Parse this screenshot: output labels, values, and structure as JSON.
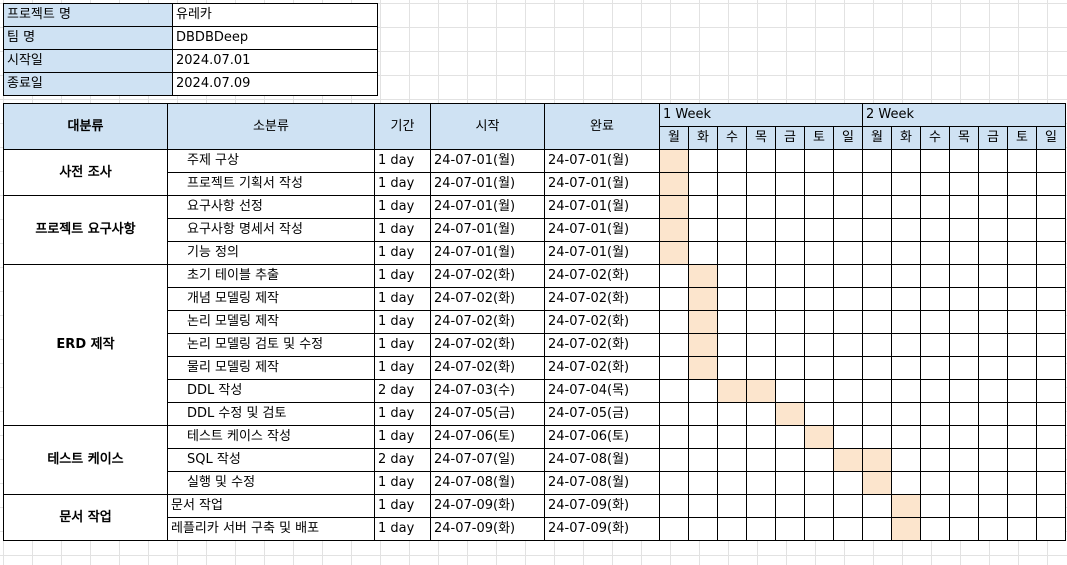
{
  "project_info": {
    "rows": [
      {
        "label": "프로젝트 명",
        "value": "유레카"
      },
      {
        "label": "팀 명",
        "value": "DBDBDeep"
      },
      {
        "label": "시작일",
        "value": "2024.07.01"
      },
      {
        "label": "종료일",
        "value": "2024.07.09"
      }
    ]
  },
  "schedule": {
    "headers": {
      "category": "대분류",
      "subcategory": "소분류",
      "duration": "기간",
      "start": "시작",
      "end": "완료"
    },
    "weeks": [
      "1 Week",
      "2 Week"
    ],
    "days": [
      "월",
      "화",
      "수",
      "목",
      "금",
      "토",
      "일",
      "월",
      "화",
      "수",
      "목",
      "금",
      "토",
      "일"
    ],
    "highlight_color": "#fce5cd",
    "header_color": "#cfe2f3",
    "groups": [
      {
        "category": "사전 조사",
        "tasks": [
          {
            "name": "주제 구상",
            "duration": "1 day",
            "start": "24-07-01(월)",
            "end": "24-07-01(월)",
            "active_days": [
              0
            ]
          },
          {
            "name": "프로젝트 기획서 작성",
            "duration": "1 day",
            "start": "24-07-01(월)",
            "end": "24-07-01(월)",
            "active_days": [
              0
            ]
          }
        ]
      },
      {
        "category": "프로젝트 요구사항",
        "tasks": [
          {
            "name": "요구사항 선정",
            "duration": "1 day",
            "start": "24-07-01(월)",
            "end": "24-07-01(월)",
            "active_days": [
              0
            ]
          },
          {
            "name": "요구사항 명세서 작성",
            "duration": "1 day",
            "start": "24-07-01(월)",
            "end": "24-07-01(월)",
            "active_days": [
              0
            ]
          },
          {
            "name": "기능 정의",
            "duration": "1 day",
            "start": "24-07-01(월)",
            "end": "24-07-01(월)",
            "active_days": [
              0
            ]
          }
        ]
      },
      {
        "category": "ERD 제작",
        "tasks": [
          {
            "name": "초기 테이블 추출",
            "duration": "1 day",
            "start": "24-07-02(화)",
            "end": "24-07-02(화)",
            "active_days": [
              1
            ]
          },
          {
            "name": "개념 모델링 제작",
            "duration": "1 day",
            "start": "24-07-02(화)",
            "end": "24-07-02(화)",
            "active_days": [
              1
            ]
          },
          {
            "name": "논리 모델링 제작",
            "duration": "1 day",
            "start": "24-07-02(화)",
            "end": "24-07-02(화)",
            "active_days": [
              1
            ]
          },
          {
            "name": "논리 모델링 검토 및 수정",
            "duration": "1 day",
            "start": "24-07-02(화)",
            "end": "24-07-02(화)",
            "active_days": [
              1
            ]
          },
          {
            "name": "물리 모델링 제작",
            "duration": "1 day",
            "start": "24-07-02(화)",
            "end": "24-07-02(화)",
            "active_days": [
              1
            ]
          },
          {
            "name": "DDL 작성",
            "duration": "2 day",
            "start": "24-07-03(수)",
            "end": "24-07-04(목)",
            "active_days": [
              2,
              3
            ]
          },
          {
            "name": "DDL 수정 및 검토",
            "duration": "1 day",
            "start": "24-07-05(금)",
            "end": "24-07-05(금)",
            "active_days": [
              4
            ]
          }
        ]
      },
      {
        "category": "테스트 케이스",
        "tasks": [
          {
            "name": "테스트 케이스 작성",
            "duration": "1 day",
            "start": "24-07-06(토)",
            "end": "24-07-06(토)",
            "active_days": [
              5
            ]
          },
          {
            "name": "SQL 작성",
            "duration": "2 day",
            "start": "24-07-07(일)",
            "end": "24-07-08(월)",
            "active_days": [
              6,
              7
            ]
          },
          {
            "name": "실행 및 수정",
            "duration": "1 day",
            "start": "24-07-08(월)",
            "end": "24-07-08(월)",
            "active_days": [
              7
            ]
          }
        ]
      },
      {
        "category": "문서 작업",
        "no_indent": true,
        "tasks": [
          {
            "name": "문서 작업",
            "duration": "1 day",
            "start": "24-07-09(화)",
            "end": "24-07-09(화)",
            "active_days": [
              8
            ]
          },
          {
            "name": "레플리카 서버 구축 및 배포",
            "duration": "1 day",
            "start": "24-07-09(화)",
            "end": "24-07-09(화)",
            "active_days": [
              8
            ]
          }
        ]
      }
    ]
  }
}
